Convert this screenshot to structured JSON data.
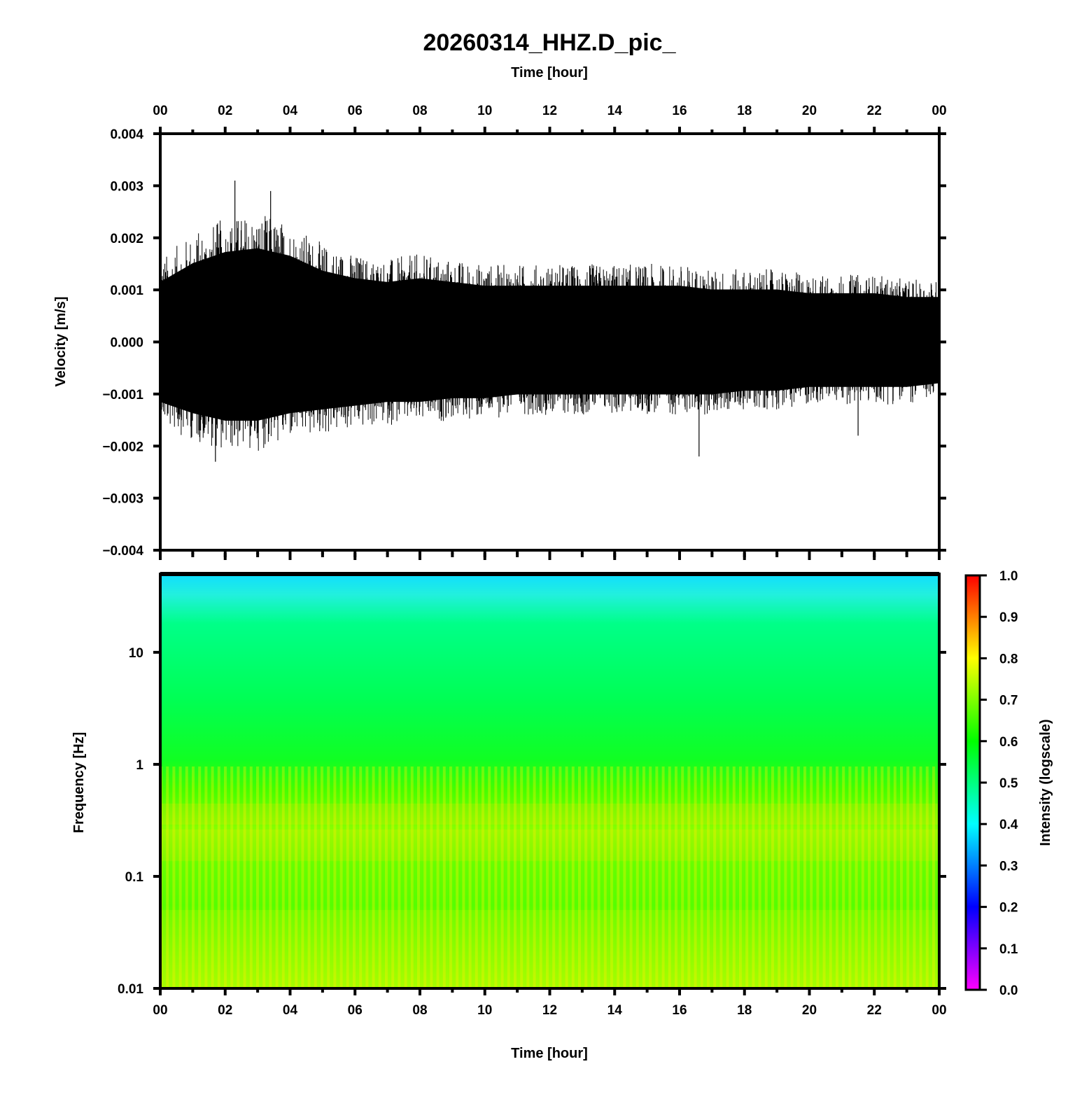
{
  "figure": {
    "title": "20260314_HHZ.D_pic_",
    "top_axis_label": "Time [hour]",
    "bottom_axis_label": "Time [hour]"
  },
  "chart_data": [
    {
      "type": "line",
      "panel": "waveform",
      "ylabel": "Velocity [m/s]",
      "xlim": [
        0,
        24
      ],
      "ylim": [
        -0.004,
        0.004
      ],
      "x_ticks": [
        "00",
        "02",
        "04",
        "06",
        "08",
        "10",
        "12",
        "14",
        "16",
        "18",
        "20",
        "22",
        "00"
      ],
      "y_ticks": [
        "0.004",
        "0.003",
        "0.002",
        "0.001",
        "0.000",
        "−0.001",
        "−0.002",
        "−0.003",
        "−0.004"
      ],
      "y_tick_values": [
        0.004,
        0.003,
        0.002,
        0.001,
        0.0,
        -0.001,
        -0.002,
        -0.003,
        -0.004
      ],
      "envelope": {
        "x": [
          0,
          1,
          2,
          3,
          4,
          5,
          6,
          7,
          8,
          9,
          10,
          11,
          12,
          13,
          14,
          15,
          16,
          17,
          18,
          19,
          20,
          21,
          22,
          23,
          24
        ],
        "upper": [
          0.0016,
          0.0021,
          0.0024,
          0.0025,
          0.0023,
          0.0019,
          0.0017,
          0.0016,
          0.0017,
          0.0016,
          0.0015,
          0.0015,
          0.0015,
          0.0015,
          0.0015,
          0.0015,
          0.0015,
          0.0014,
          0.0014,
          0.0014,
          0.0013,
          0.0013,
          0.0013,
          0.0012,
          0.0012
        ],
        "lower": [
          -0.0016,
          -0.0019,
          -0.0021,
          -0.0021,
          -0.0019,
          -0.0018,
          -0.0017,
          -0.0016,
          -0.0016,
          -0.0015,
          -0.0015,
          -0.0014,
          -0.0014,
          -0.0014,
          -0.0014,
          -0.0014,
          -0.0014,
          -0.0014,
          -0.0013,
          -0.0013,
          -0.0012,
          -0.0012,
          -0.0012,
          -0.0012,
          -0.0011
        ]
      },
      "peaks": [
        {
          "x": 2.3,
          "y": 0.0031
        },
        {
          "x": 3.4,
          "y": 0.0029
        },
        {
          "x": 1.7,
          "y": -0.0023
        },
        {
          "x": 16.6,
          "y": -0.0022
        },
        {
          "x": 21.5,
          "y": -0.0018
        }
      ],
      "color": "#000000"
    },
    {
      "type": "heatmap",
      "panel": "spectrogram",
      "ylabel": "Frequency [Hz]",
      "xlabel": "Time [hour]",
      "yscale": "log",
      "xlim": [
        0,
        24
      ],
      "ylim": [
        0.01,
        50
      ],
      "x_ticks": [
        "00",
        "02",
        "04",
        "06",
        "08",
        "10",
        "12",
        "14",
        "16",
        "18",
        "20",
        "22",
        "00"
      ],
      "y_ticks": [
        "10",
        "1",
        "0.1",
        "0.01"
      ],
      "y_tick_values": [
        10,
        1,
        0.1,
        0.01
      ],
      "intensity_profile": {
        "frequency": [
          50,
          30,
          10,
          3,
          1,
          0.7,
          0.35,
          0.2,
          0.1,
          0.05,
          0.02,
          0.01
        ],
        "intensity": [
          0.4,
          0.45,
          0.52,
          0.56,
          0.58,
          0.66,
          0.72,
          0.7,
          0.64,
          0.66,
          0.7,
          0.72
        ]
      },
      "colorbar": {
        "label": "Intensity (logscale)",
        "range": [
          0.0,
          1.0
        ],
        "ticks": [
          "1.0",
          "0.9",
          "0.8",
          "0.7",
          "0.6",
          "0.5",
          "0.4",
          "0.3",
          "0.2",
          "0.1",
          "0.0"
        ],
        "tick_values": [
          1.0,
          0.9,
          0.8,
          0.7,
          0.6,
          0.5,
          0.4,
          0.3,
          0.2,
          0.1,
          0.0
        ],
        "colors": [
          "#ff00ff",
          "#0000ff",
          "#00ffff",
          "#00ff00",
          "#ffff00",
          "#ff0000"
        ]
      }
    }
  ]
}
